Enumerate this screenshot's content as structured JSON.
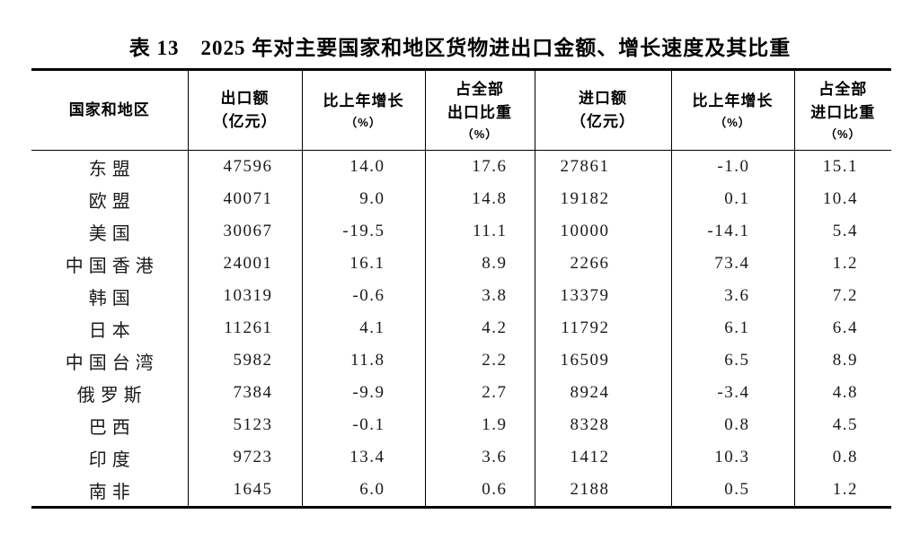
{
  "title": "表 13　2025 年对主要国家和地区货物进出口金额、增长速度及其比重",
  "table": {
    "columns": [
      {
        "id": "region",
        "lines": [
          "国家和地区"
        ]
      },
      {
        "id": "export_value",
        "lines": [
          "出口额",
          "（亿元）"
        ]
      },
      {
        "id": "export_growth",
        "lines": [
          "比上年增长",
          "（%）"
        ]
      },
      {
        "id": "export_share",
        "lines": [
          "占全部",
          "出口比重",
          "（%）"
        ]
      },
      {
        "id": "import_value",
        "lines": [
          "进口额",
          "（亿元）"
        ]
      },
      {
        "id": "import_growth",
        "lines": [
          "比上年增长",
          "（%）"
        ]
      },
      {
        "id": "import_share",
        "lines": [
          "占全部",
          "进口比重",
          "（%）"
        ]
      }
    ],
    "rows": [
      {
        "region": "东盟",
        "export_value": "47596",
        "export_growth": "14.0",
        "export_share": "17.6",
        "import_value": "27861",
        "import_growth": "-1.0",
        "import_share": "15.1"
      },
      {
        "region": "欧盟",
        "export_value": "40071",
        "export_growth": "9.0",
        "export_share": "14.8",
        "import_value": "19182",
        "import_growth": "0.1",
        "import_share": "10.4"
      },
      {
        "region": "美国",
        "export_value": "30067",
        "export_growth": "-19.5",
        "export_share": "11.1",
        "import_value": "10000",
        "import_growth": "-14.1",
        "import_share": "5.4"
      },
      {
        "region": "中国香港",
        "export_value": "24001",
        "export_growth": "16.1",
        "export_share": "8.9",
        "import_value": "2266",
        "import_growth": "73.4",
        "import_share": "1.2"
      },
      {
        "region": "韩国",
        "export_value": "10319",
        "export_growth": "-0.6",
        "export_share": "3.8",
        "import_value": "13379",
        "import_growth": "3.6",
        "import_share": "7.2"
      },
      {
        "region": "日本",
        "export_value": "11261",
        "export_growth": "4.1",
        "export_share": "4.2",
        "import_value": "11792",
        "import_growth": "6.1",
        "import_share": "6.4"
      },
      {
        "region": "中国台湾",
        "export_value": "5982",
        "export_growth": "11.8",
        "export_share": "2.2",
        "import_value": "16509",
        "import_growth": "6.5",
        "import_share": "8.9"
      },
      {
        "region": "俄罗斯",
        "export_value": "7384",
        "export_growth": "-9.9",
        "export_share": "2.7",
        "import_value": "8924",
        "import_growth": "-3.4",
        "import_share": "4.8"
      },
      {
        "region": "巴西",
        "export_value": "5123",
        "export_growth": "-0.1",
        "export_share": "1.9",
        "import_value": "8328",
        "import_growth": "0.8",
        "import_share": "4.5"
      },
      {
        "region": "印度",
        "export_value": "9723",
        "export_growth": "13.4",
        "export_share": "3.6",
        "import_value": "1412",
        "import_growth": "10.3",
        "import_share": "0.8"
      },
      {
        "region": "南非",
        "export_value": "1645",
        "export_growth": "6.0",
        "export_share": "0.6",
        "import_value": "2188",
        "import_growth": "0.5",
        "import_share": "1.2"
      }
    ]
  }
}
